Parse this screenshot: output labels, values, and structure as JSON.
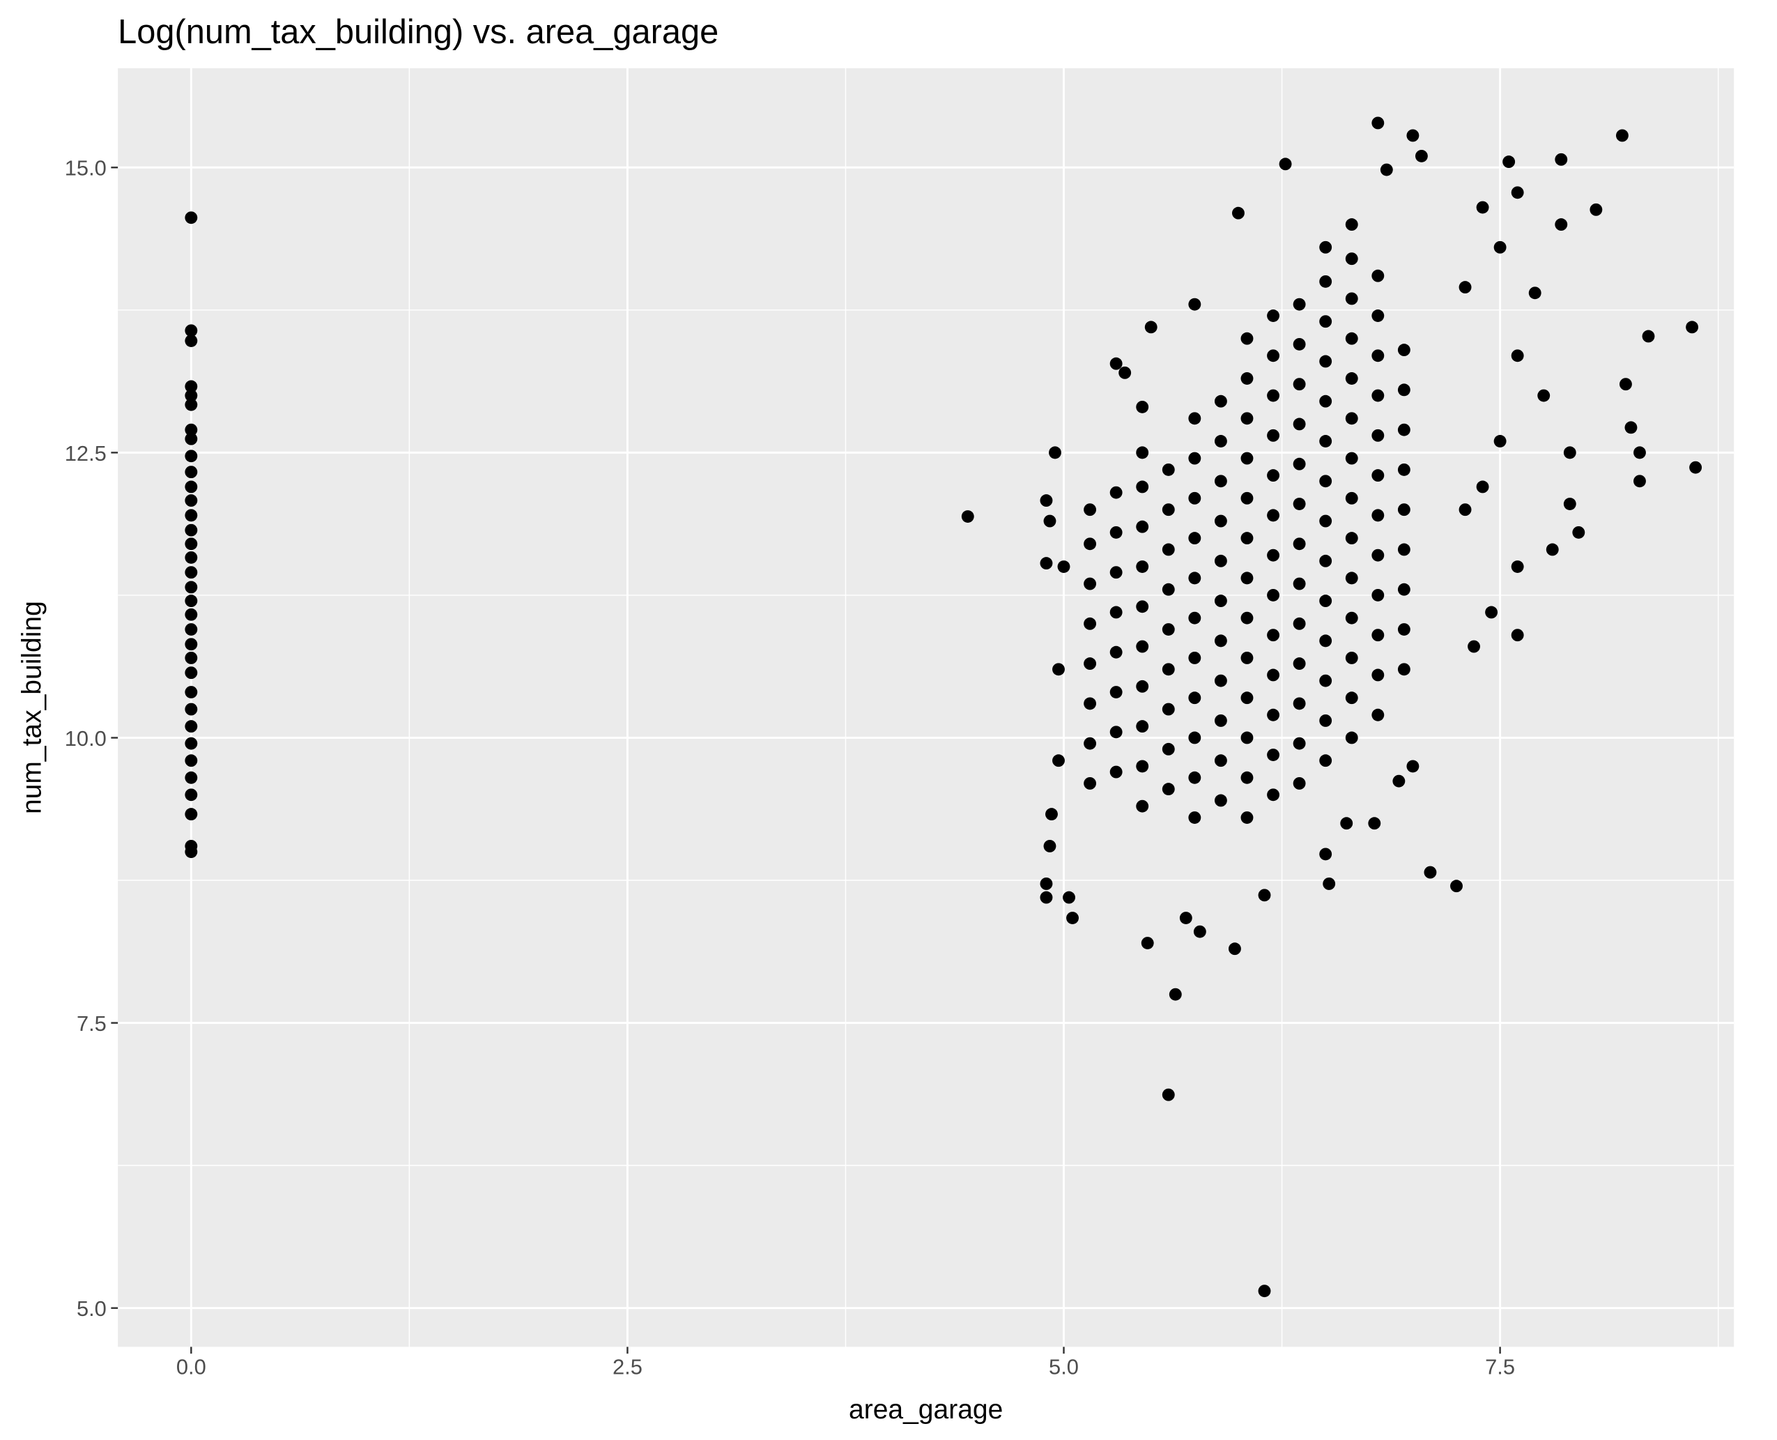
{
  "chart_data": {
    "type": "scatter",
    "title": "Log(num_tax_building) vs. area_garage",
    "x_label": "area_garage",
    "y_label": "num_tax_building",
    "color": "#000000",
    "grid": true,
    "xlim": [
      -0.42,
      8.84
    ],
    "ylim": [
      4.66,
      15.87
    ],
    "xticks": [
      {
        "value": 0,
        "label": "0.0"
      },
      2.5,
      {
        "value": 5,
        "label": "5.0"
      },
      7.5
    ],
    "yticks": [
      {
        "value": 5,
        "label": "5.0"
      },
      7.5,
      {
        "value": 10,
        "label": "10.0"
      },
      12.5,
      {
        "value": 15,
        "label": "15.0"
      }
    ],
    "x_minor_grid": [
      1.25,
      3.75,
      6.25,
      8.75
    ],
    "y_minor_grid": [
      6.25,
      8.75,
      11.25,
      13.75
    ],
    "x": [
      0,
      0,
      0,
      0,
      0,
      0,
      0,
      0,
      0,
      0,
      0,
      0,
      0,
      0,
      0,
      0,
      0,
      0,
      0,
      0,
      0,
      0,
      0,
      0,
      0,
      0,
      0,
      0,
      0,
      0,
      0,
      0,
      0,
      0,
      4.45,
      4.9,
      4.92,
      4.9,
      4.95,
      4.9,
      4.9,
      5.03,
      5.05,
      4.93,
      4.92,
      5.6,
      6.15,
      5.64,
      5.98,
      5.48,
      5.78,
      5.7,
      7.1,
      7.25,
      6.52,
      6.15,
      6.8,
      7.0,
      8.2,
      7.85,
      6.27,
      6.85,
      7.05,
      7.55,
      7.6,
      8.05,
      7.85,
      6.0,
      8.6,
      8.35,
      8.22,
      8.25,
      8.3,
      8.3,
      8.62,
      7.9,
      7.95,
      7.8,
      7.6,
      7.6,
      7.45,
      7.35,
      7.0,
      6.92,
      6.78,
      6.62,
      6.5,
      5.5,
      5.75,
      5.3,
      5.35,
      5.45,
      5.0,
      4.97,
      4.97,
      7.3,
      7.4,
      7.5,
      7.7,
      7.6,
      7.75,
      7.5,
      7.9,
      7.4,
      7.3,
      5.15,
      5.15,
      5.15,
      5.15,
      5.15,
      5.15,
      5.15,
      5.15,
      5.3,
      5.3,
      5.3,
      5.3,
      5.3,
      5.3,
      5.3,
      5.3,
      5.45,
      5.45,
      5.45,
      5.45,
      5.45,
      5.45,
      5.45,
      5.45,
      5.45,
      5.45,
      5.6,
      5.6,
      5.6,
      5.6,
      5.6,
      5.6,
      5.6,
      5.6,
      5.6,
      5.75,
      5.75,
      5.75,
      5.75,
      5.75,
      5.75,
      5.75,
      5.75,
      5.75,
      5.75,
      5.75,
      5.9,
      5.9,
      5.9,
      5.9,
      5.9,
      5.9,
      5.9,
      5.9,
      5.9,
      5.9,
      5.9,
      6.05,
      6.05,
      6.05,
      6.05,
      6.05,
      6.05,
      6.05,
      6.05,
      6.05,
      6.05,
      6.05,
      6.05,
      6.05,
      6.2,
      6.2,
      6.2,
      6.2,
      6.2,
      6.2,
      6.2,
      6.2,
      6.2,
      6.2,
      6.2,
      6.2,
      6.2,
      6.35,
      6.35,
      6.35,
      6.35,
      6.35,
      6.35,
      6.35,
      6.35,
      6.35,
      6.35,
      6.35,
      6.35,
      6.35,
      6.5,
      6.5,
      6.5,
      6.5,
      6.5,
      6.5,
      6.5,
      6.5,
      6.5,
      6.5,
      6.5,
      6.5,
      6.5,
      6.5,
      6.65,
      6.65,
      6.65,
      6.65,
      6.65,
      6.65,
      6.65,
      6.65,
      6.65,
      6.65,
      6.65,
      6.65,
      6.65,
      6.65,
      6.8,
      6.8,
      6.8,
      6.8,
      6.8,
      6.8,
      6.8,
      6.8,
      6.8,
      6.8,
      6.8,
      6.8,
      6.95,
      6.95,
      6.95,
      6.95,
      6.95,
      6.95,
      6.95,
      6.95,
      6.95
    ],
    "values": [
      14.56,
      13.57,
      13.48,
      13.08,
      13.0,
      12.92,
      12.7,
      12.62,
      12.47,
      12.33,
      12.2,
      12.08,
      11.95,
      11.82,
      11.7,
      11.58,
      11.45,
      11.32,
      11.2,
      11.08,
      10.95,
      10.82,
      10.7,
      10.57,
      10.4,
      10.25,
      10.1,
      9.95,
      9.8,
      9.65,
      9.5,
      9.33,
      9.05,
      9.0,
      11.94,
      12.08,
      11.9,
      11.53,
      12.5,
      8.72,
      8.6,
      8.6,
      8.42,
      9.33,
      9.05,
      6.87,
      5.15,
      7.75,
      8.15,
      8.2,
      8.3,
      8.42,
      8.82,
      8.7,
      8.72,
      8.62,
      15.39,
      15.28,
      15.28,
      15.07,
      15.03,
      14.98,
      15.1,
      15.05,
      14.78,
      14.63,
      14.5,
      14.6,
      13.6,
      13.52,
      13.1,
      12.72,
      12.5,
      12.25,
      12.37,
      12.05,
      11.8,
      11.65,
      11.5,
      10.9,
      11.1,
      10.8,
      9.75,
      9.62,
      9.25,
      9.25,
      8.98,
      13.6,
      13.8,
      13.28,
      13.2,
      12.9,
      11.5,
      10.6,
      9.8,
      13.95,
      14.65,
      14.3,
      13.9,
      13.35,
      13.0,
      12.6,
      12.5,
      12.2,
      12.0,
      9.6,
      9.95,
      10.3,
      10.65,
      11.0,
      11.35,
      11.7,
      12.0,
      9.7,
      10.05,
      10.4,
      10.75,
      11.1,
      11.45,
      11.8,
      12.15,
      9.4,
      9.75,
      10.1,
      10.45,
      10.8,
      11.15,
      11.5,
      11.85,
      12.2,
      12.5,
      9.55,
      9.9,
      10.25,
      10.6,
      10.95,
      11.3,
      11.65,
      12.0,
      12.35,
      9.3,
      9.65,
      10.0,
      10.35,
      10.7,
      11.05,
      11.4,
      11.75,
      12.1,
      12.45,
      12.8,
      9.45,
      9.8,
      10.15,
      10.5,
      10.85,
      11.2,
      11.55,
      11.9,
      12.25,
      12.6,
      12.95,
      9.3,
      9.65,
      10.0,
      10.35,
      10.7,
      11.05,
      11.4,
      11.75,
      12.1,
      12.45,
      12.8,
      13.15,
      13.5,
      9.5,
      9.85,
      10.2,
      10.55,
      10.9,
      11.25,
      11.6,
      11.95,
      12.3,
      12.65,
      13.0,
      13.35,
      13.7,
      9.6,
      9.95,
      10.3,
      10.65,
      11.0,
      11.35,
      11.7,
      12.05,
      12.4,
      12.75,
      13.1,
      13.45,
      13.8,
      9.8,
      10.15,
      10.5,
      10.85,
      11.2,
      11.55,
      11.9,
      12.25,
      12.6,
      12.95,
      13.3,
      13.65,
      14.0,
      14.3,
      10.0,
      10.35,
      10.7,
      11.05,
      11.4,
      11.75,
      12.1,
      12.45,
      12.8,
      13.15,
      13.5,
      13.85,
      14.2,
      14.5,
      10.2,
      10.55,
      10.9,
      11.25,
      11.6,
      11.95,
      12.3,
      12.65,
      13.0,
      13.35,
      13.7,
      14.05,
      10.6,
      10.95,
      11.3,
      11.65,
      12.0,
      12.35,
      12.7,
      13.05,
      13.4
    ]
  }
}
